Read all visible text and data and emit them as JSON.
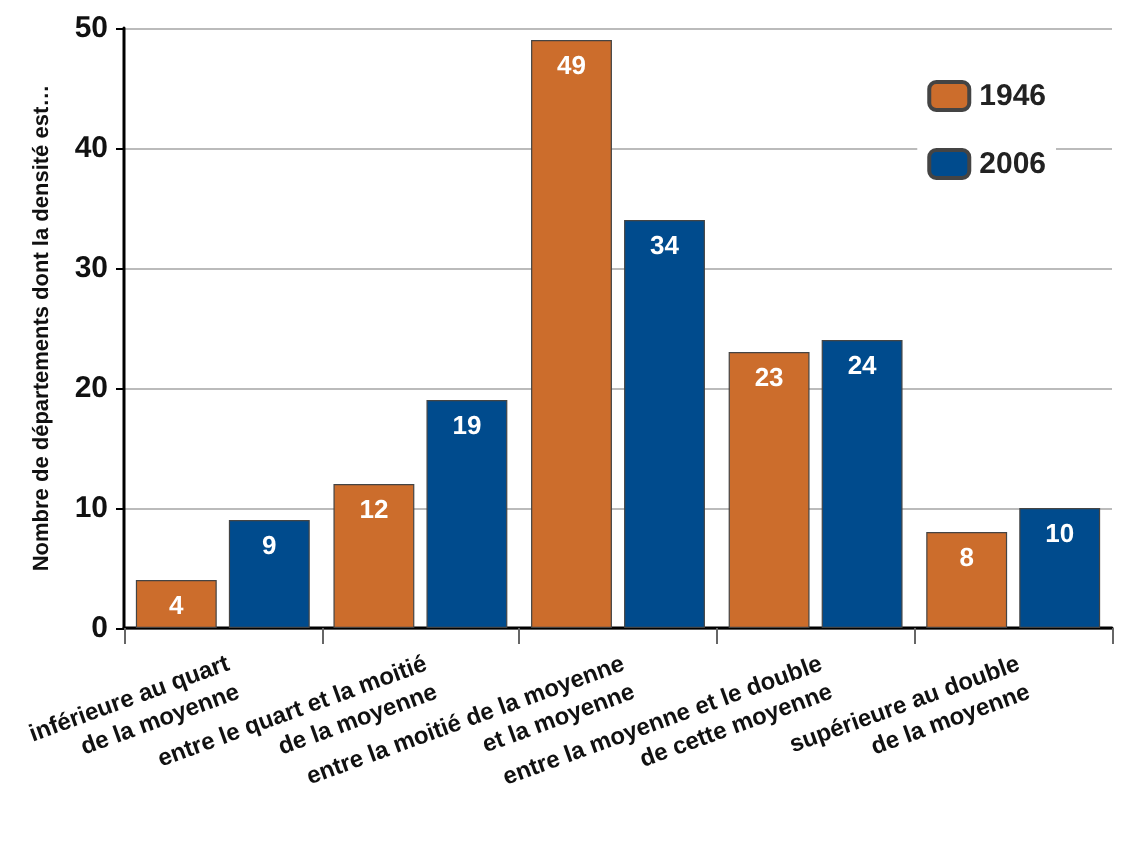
{
  "chart_data": {
    "type": "bar",
    "ylabel": "Nombre de départements dont la densité est…",
    "categories": [
      "inférieure au quart\nde la moyenne",
      "entre le quart et la moitié\nde la moyenne",
      "entre la moitié de la moyenne\net la moyenne",
      "entre la moyenne et le double\nde cette moyenne",
      "supérieure au double\nde la moyenne"
    ],
    "series": [
      {
        "name": "1946",
        "color": "#cc6d2c",
        "values": [
          4,
          12,
          49,
          23,
          8
        ]
      },
      {
        "name": "2006",
        "color": "#004b8d",
        "values": [
          9,
          19,
          34,
          24,
          10
        ]
      }
    ],
    "ylim": [
      0,
      50
    ],
    "yticks": [
      0,
      10,
      20,
      30,
      40,
      50
    ],
    "grid": "y",
    "legend": "top right",
    "data_labels": true
  }
}
